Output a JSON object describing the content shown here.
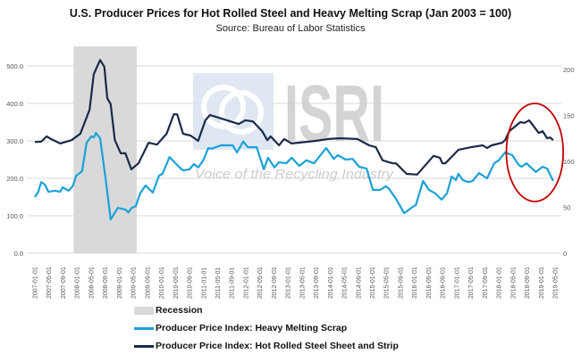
{
  "chart_data": {
    "type": "line",
    "title": "U.S. Producer Prices for Hot Rolled Steel and Heavy Melting Scrap (Jan 2003 = 100)",
    "subtitle": "Source: Bureau of Labor Statistics",
    "xlabel": "",
    "ylabel": "",
    "ylim": [
      0,
      500
    ],
    "y_ticks": [
      "0.0",
      "100.0",
      "200.0",
      "300.0",
      "400.0",
      "500.0"
    ],
    "y2_ticks": [
      "0",
      "50",
      "100",
      "150",
      "200"
    ],
    "y2lim": [
      0,
      204
    ],
    "grid": true,
    "legend_position": "bottom-left",
    "x_tick_labels": [
      "2007-01-01",
      "2007-05-01",
      "2007-09-01",
      "2008-01-01",
      "2008-05-01",
      "2008-09-01",
      "2009-01-01",
      "2009-05-01",
      "2009-09-01",
      "2010-01-01",
      "2010-05-01",
      "2010-09-01",
      "2011-01-01",
      "2011-05-01",
      "2011-09-01",
      "2012-01-01",
      "2012-05-01",
      "2012-09-01",
      "2013-01-01",
      "2013-05-01",
      "2013-09-01",
      "2014-01-01",
      "2014-05-01",
      "2014-09-01",
      "2015-01-01",
      "2015-05-01",
      "2015-09-01",
      "2016-01-01",
      "2016-05-01",
      "2016-09-01",
      "2017-01-01",
      "2017-05-01",
      "2017-09-01",
      "2018-01-01",
      "2018-05-01",
      "2018-09-01",
      "2019-01-01",
      "2019-05-01"
    ],
    "recession": {
      "label": "Recession",
      "start": 2007.92,
      "end": 2009.42,
      "color": "#d9d9d9"
    },
    "highlight": {
      "type": "ellipse",
      "color": "#c00000",
      "start": 2018.2,
      "end": 2019.55
    },
    "series": [
      {
        "name": "Producer Price Index: Heavy Melting Scrap",
        "color": "#1ba1d8",
        "points": [
          [
            2007.0,
            150
          ],
          [
            2007.08,
            164
          ],
          [
            2007.15,
            190
          ],
          [
            2007.24,
            183
          ],
          [
            2007.32,
            164
          ],
          [
            2007.48,
            167
          ],
          [
            2007.6,
            164
          ],
          [
            2007.66,
            176
          ],
          [
            2007.8,
            167
          ],
          [
            2007.9,
            179
          ],
          [
            2007.98,
            207
          ],
          [
            2008.12,
            219
          ],
          [
            2008.23,
            295
          ],
          [
            2008.34,
            312
          ],
          [
            2008.4,
            309
          ],
          [
            2008.45,
            321
          ],
          [
            2008.55,
            307
          ],
          [
            2008.68,
            200
          ],
          [
            2008.8,
            90
          ],
          [
            2008.97,
            121
          ],
          [
            2009.15,
            117
          ],
          [
            2009.22,
            109
          ],
          [
            2009.3,
            121
          ],
          [
            2009.4,
            126
          ],
          [
            2009.5,
            160
          ],
          [
            2009.63,
            181
          ],
          [
            2009.8,
            162
          ],
          [
            2009.95,
            207
          ],
          [
            2010.03,
            212
          ],
          [
            2010.2,
            257
          ],
          [
            2010.42,
            231
          ],
          [
            2010.52,
            221
          ],
          [
            2010.67,
            224
          ],
          [
            2010.78,
            238
          ],
          [
            2010.88,
            229
          ],
          [
            2011.0,
            248
          ],
          [
            2011.12,
            281
          ],
          [
            2011.2,
            279
          ],
          [
            2011.42,
            288
          ],
          [
            2011.7,
            288
          ],
          [
            2011.8,
            269
          ],
          [
            2011.95,
            298
          ],
          [
            2012.06,
            283
          ],
          [
            2012.27,
            283
          ],
          [
            2012.44,
            224
          ],
          [
            2012.54,
            255
          ],
          [
            2012.69,
            229
          ],
          [
            2012.8,
            243
          ],
          [
            2012.97,
            240
          ],
          [
            2013.1,
            255
          ],
          [
            2013.28,
            233
          ],
          [
            2013.45,
            248
          ],
          [
            2013.63,
            240
          ],
          [
            2013.92,
            281
          ],
          [
            2014.1,
            252
          ],
          [
            2014.2,
            262
          ],
          [
            2014.38,
            250
          ],
          [
            2014.55,
            252
          ],
          [
            2014.7,
            231
          ],
          [
            2014.88,
            226
          ],
          [
            2015.03,
            169
          ],
          [
            2015.2,
            169
          ],
          [
            2015.34,
            179
          ],
          [
            2015.42,
            171
          ],
          [
            2015.58,
            145
          ],
          [
            2015.77,
            107
          ],
          [
            2015.94,
            121
          ],
          [
            2016.05,
            129
          ],
          [
            2016.22,
            193
          ],
          [
            2016.36,
            169
          ],
          [
            2016.51,
            160
          ],
          [
            2016.66,
            143
          ],
          [
            2016.79,
            160
          ],
          [
            2016.9,
            205
          ],
          [
            2017.0,
            195
          ],
          [
            2017.06,
            212
          ],
          [
            2017.17,
            195
          ],
          [
            2017.3,
            190
          ],
          [
            2017.4,
            193
          ],
          [
            2017.55,
            214
          ],
          [
            2017.74,
            200
          ],
          [
            2017.91,
            240
          ],
          [
            2018.02,
            248
          ],
          [
            2018.17,
            269
          ],
          [
            2018.34,
            262
          ],
          [
            2018.49,
            236
          ],
          [
            2018.56,
            231
          ],
          [
            2018.68,
            240
          ],
          [
            2018.9,
            217
          ],
          [
            2019.06,
            231
          ],
          [
            2019.17,
            226
          ],
          [
            2019.31,
            193
          ]
        ]
      },
      {
        "name": "Producer Price Index: Hot Rolled Steel Sheet and Strip",
        "color": "#1b2a4a",
        "points": [
          [
            2007.0,
            297
          ],
          [
            2007.15,
            298
          ],
          [
            2007.28,
            312
          ],
          [
            2007.4,
            304
          ],
          [
            2007.6,
            293
          ],
          [
            2007.87,
            302
          ],
          [
            2008.08,
            319
          ],
          [
            2008.3,
            383
          ],
          [
            2008.4,
            478
          ],
          [
            2008.55,
            516
          ],
          [
            2008.65,
            498
          ],
          [
            2008.72,
            414
          ],
          [
            2008.8,
            398
          ],
          [
            2008.9,
            302
          ],
          [
            2009.04,
            267
          ],
          [
            2009.15,
            267
          ],
          [
            2009.29,
            224
          ],
          [
            2009.46,
            240
          ],
          [
            2009.7,
            295
          ],
          [
            2009.9,
            290
          ],
          [
            2010.13,
            319
          ],
          [
            2010.3,
            371
          ],
          [
            2010.38,
            371
          ],
          [
            2010.52,
            319
          ],
          [
            2010.7,
            314
          ],
          [
            2010.88,
            300
          ],
          [
            2011.05,
            355
          ],
          [
            2011.16,
            369
          ],
          [
            2011.42,
            360
          ],
          [
            2011.84,
            345
          ],
          [
            2012.0,
            355
          ],
          [
            2012.18,
            352
          ],
          [
            2012.4,
            326
          ],
          [
            2012.52,
            302
          ],
          [
            2012.6,
            312
          ],
          [
            2012.8,
            288
          ],
          [
            2012.92,
            305
          ],
          [
            2013.1,
            293
          ],
          [
            2013.67,
            300
          ],
          [
            2013.96,
            305
          ],
          [
            2014.24,
            307
          ],
          [
            2014.66,
            305
          ],
          [
            2014.94,
            288
          ],
          [
            2015.1,
            283
          ],
          [
            2015.26,
            248
          ],
          [
            2015.5,
            240
          ],
          [
            2015.58,
            240
          ],
          [
            2015.83,
            212
          ],
          [
            2016.08,
            210
          ],
          [
            2016.47,
            260
          ],
          [
            2016.62,
            255
          ],
          [
            2016.68,
            240
          ],
          [
            2016.75,
            240
          ],
          [
            2017.06,
            276
          ],
          [
            2017.36,
            283
          ],
          [
            2017.64,
            288
          ],
          [
            2017.74,
            281
          ],
          [
            2017.85,
            288
          ],
          [
            2018.1,
            295
          ],
          [
            2018.17,
            302
          ],
          [
            2018.27,
            326
          ],
          [
            2018.53,
            350
          ],
          [
            2018.63,
            348
          ],
          [
            2018.74,
            355
          ],
          [
            2018.97,
            321
          ],
          [
            2019.06,
            326
          ],
          [
            2019.17,
            307
          ],
          [
            2019.24,
            309
          ],
          [
            2019.31,
            302
          ]
        ]
      }
    ]
  },
  "logo": {
    "text": "ISRI",
    "tagline": "Voice of the Recycling Industry"
  }
}
